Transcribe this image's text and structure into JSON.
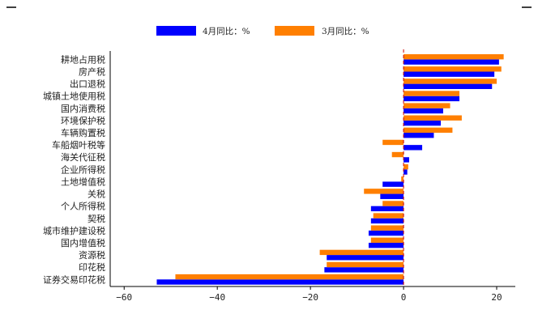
{
  "chart_data": {
    "type": "bar",
    "orientation": "horizontal",
    "categories": [
      "耕地占用税",
      "房产税",
      "出口退税",
      "城镇土地使用税",
      "国内消费税",
      "环境保护税",
      "车辆购置税",
      "车船烟叶税等",
      "海关代征税",
      "企业所得税",
      "土地增值税",
      "关税",
      "个人所得税",
      "契税",
      "城市维护建设税",
      "国内增值税",
      "资源税",
      "印花税",
      "证券交易印花税"
    ],
    "series": [
      {
        "name": "4月同比：%",
        "color": "#0000ff",
        "values": [
          20.5,
          19.5,
          19.0,
          12.0,
          8.5,
          8.0,
          6.5,
          4.0,
          1.2,
          0.8,
          -4.5,
          -5.0,
          -7.0,
          -7.0,
          -7.5,
          -7.5,
          -16.5,
          -17.0,
          -53.0
        ]
      },
      {
        "name": "3月同比：%",
        "color": "#ff7f00",
        "values": [
          21.5,
          21.0,
          20.0,
          12.0,
          10.0,
          12.5,
          10.5,
          -4.5,
          -2.5,
          1.0,
          -0.5,
          -8.5,
          -4.5,
          -6.5,
          -7.0,
          -7.0,
          -18.0,
          -16.5,
          -49.0
        ]
      }
    ],
    "xlim": [
      -63,
      24
    ],
    "xticks": [
      -60,
      -40,
      -20,
      0,
      20
    ],
    "xtick_labels": [
      "−60",
      "−40",
      "−20",
      "0",
      "20"
    ],
    "zero_line_color": "#cc0000",
    "grid": false,
    "legend_position": "top"
  }
}
